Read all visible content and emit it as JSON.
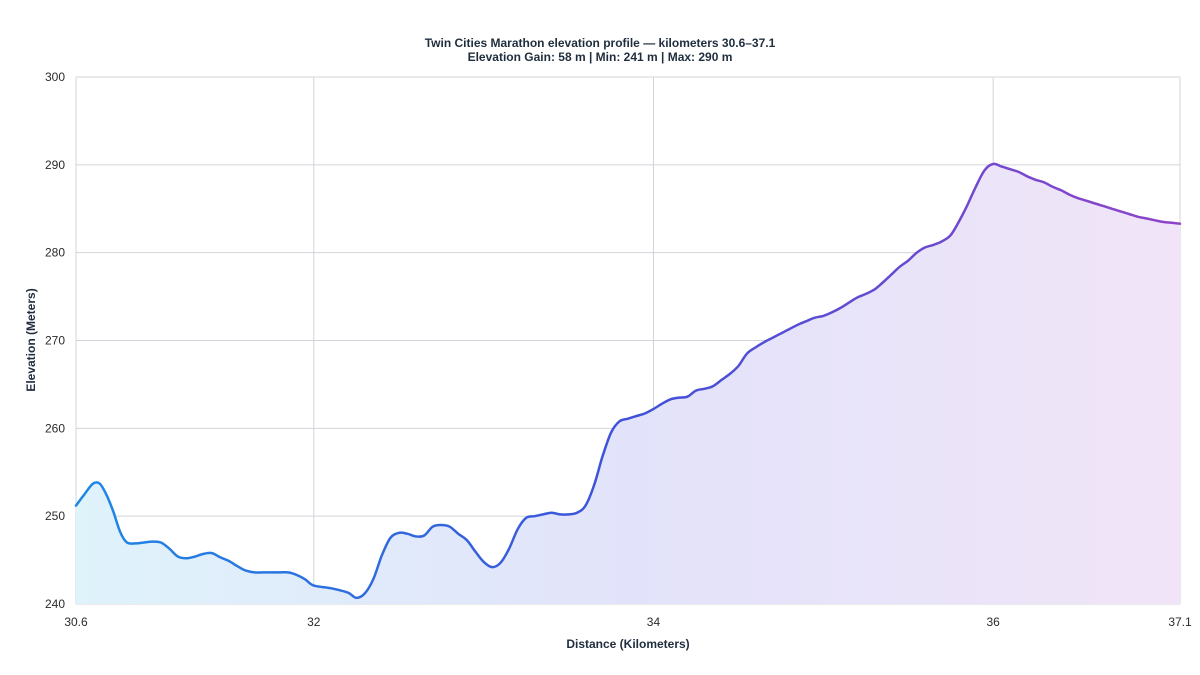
{
  "chart_data": {
    "type": "area",
    "title": "Twin Cities Marathon elevation profile — kilometers 30.6–37.1",
    "subtitle": "Elevation Gain: 58 m | Min: 241 m | Max: 290 m",
    "xlabel": "Distance (Kilometers)",
    "ylabel": "Elevation (Meters)",
    "xlim": [
      30.6,
      37.1
    ],
    "ylim": [
      240,
      300
    ],
    "x_ticks": [
      30.6,
      32,
      34,
      36,
      37.1
    ],
    "x_tick_labels": [
      "30.6",
      "32",
      "34",
      "36",
      "37.1"
    ],
    "y_ticks": [
      240,
      250,
      260,
      270,
      280,
      290,
      300
    ],
    "y_tick_labels": [
      "240",
      "250",
      "260",
      "270",
      "280",
      "290",
      "300"
    ],
    "grid": true,
    "line_gradient": [
      "#1e88e5",
      "#3f51d8",
      "#8e44c8"
    ],
    "fill_gradient": [
      "#dff3fb",
      "#e2e3fa",
      "#f1e4f8"
    ],
    "series": [
      {
        "x": [
          30.6,
          30.65,
          30.7,
          30.74,
          30.78,
          30.82,
          30.86,
          30.9,
          30.95,
          31.0,
          31.05,
          31.1,
          31.15,
          31.2,
          31.25,
          31.3,
          31.35,
          31.4,
          31.45,
          31.5,
          31.55,
          31.6,
          31.65,
          31.7,
          31.75,
          31.8,
          31.85,
          31.9,
          31.95,
          32.0,
          32.1,
          32.2,
          32.25,
          32.3,
          32.35,
          32.4,
          32.45,
          32.5,
          32.55,
          32.6,
          32.65,
          32.7,
          32.75,
          32.8,
          32.85,
          32.9,
          32.95,
          33.0,
          33.05,
          33.1,
          33.15,
          33.2,
          33.25,
          33.3,
          33.35,
          33.4,
          33.45,
          33.5,
          33.55,
          33.6,
          33.65,
          33.7,
          33.75,
          33.8,
          33.85,
          33.9,
          33.95,
          34.0,
          34.05,
          34.1,
          34.15,
          34.2,
          34.25,
          34.3,
          34.35,
          34.4,
          34.45,
          34.5,
          34.55,
          34.6,
          34.65,
          34.7,
          34.75,
          34.8,
          34.85,
          34.9,
          34.95,
          35.0,
          35.05,
          35.1,
          35.15,
          35.2,
          35.25,
          35.3,
          35.35,
          35.4,
          35.45,
          35.5,
          35.55,
          35.6,
          35.65,
          35.7,
          35.75,
          35.8,
          35.85,
          35.9,
          35.95,
          36.0,
          36.05,
          36.1,
          36.15,
          36.2,
          36.25,
          36.3,
          36.35,
          36.4,
          36.45,
          36.5,
          36.55,
          36.6,
          36.65,
          36.7,
          36.75,
          36.8,
          36.85,
          36.9,
          36.95,
          37.0,
          37.05,
          37.1
        ],
        "values": [
          251.2,
          252.5,
          253.7,
          253.7,
          252.4,
          250.5,
          248.2,
          247.0,
          246.9,
          247.0,
          247.1,
          247.0,
          246.3,
          245.4,
          245.2,
          245.4,
          245.7,
          245.8,
          245.3,
          244.9,
          244.3,
          243.8,
          243.6,
          243.6,
          243.6,
          243.6,
          243.6,
          243.3,
          242.8,
          242.1,
          241.8,
          241.3,
          240.7,
          241.2,
          242.8,
          245.5,
          247.5,
          248.1,
          248.0,
          247.7,
          247.8,
          248.8,
          249.0,
          248.8,
          248.0,
          247.3,
          246.0,
          244.8,
          244.2,
          244.7,
          246.3,
          248.5,
          249.8,
          250.0,
          250.2,
          250.4,
          250.2,
          250.2,
          250.4,
          251.2,
          253.5,
          256.8,
          259.5,
          260.8,
          261.1,
          261.4,
          261.7,
          262.2,
          262.8,
          263.3,
          263.5,
          263.6,
          264.3,
          264.5,
          264.8,
          265.5,
          266.2,
          267.1,
          268.5,
          269.2,
          269.8,
          270.3,
          270.8,
          271.3,
          271.8,
          272.2,
          272.6,
          272.8,
          273.2,
          273.7,
          274.3,
          274.9,
          275.3,
          275.8,
          276.6,
          277.5,
          278.4,
          279.1,
          280.0,
          280.6,
          280.9,
          281.3,
          282.0,
          283.6,
          285.5,
          287.6,
          289.4,
          290.1,
          289.8,
          289.5,
          289.2,
          288.7,
          288.3,
          288.0,
          287.5,
          287.1,
          286.6,
          286.2,
          285.9,
          285.6,
          285.3,
          285.0,
          284.7,
          284.4,
          284.1,
          283.9,
          283.7,
          283.5,
          283.4,
          283.3
        ]
      }
    ]
  }
}
